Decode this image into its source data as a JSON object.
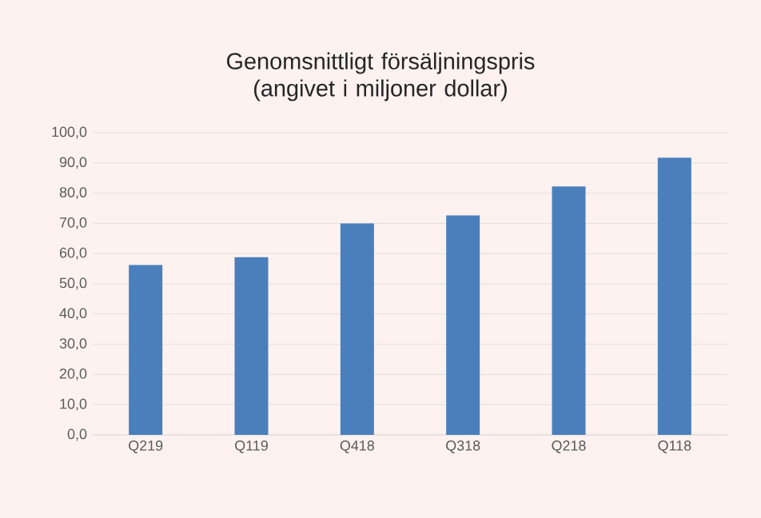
{
  "chart_data": {
    "type": "bar",
    "title": "Genomsnittligt försäljningspris (angivet i miljoner dollar)",
    "categories": [
      "Q219",
      "Q119",
      "Q418",
      "Q318",
      "Q218",
      "Q118"
    ],
    "values": [
      56.2,
      58.8,
      70.0,
      72.6,
      82.2,
      91.7
    ],
    "color": "#4a7fbc",
    "ylim": [
      0,
      100
    ],
    "yticks": [
      {
        "value": 0,
        "label": "0,0"
      },
      {
        "value": 10,
        "label": "10,0"
      },
      {
        "value": 20,
        "label": "20,0"
      },
      {
        "value": 30,
        "label": "30,0"
      },
      {
        "value": 40,
        "label": "40,0"
      },
      {
        "value": 50,
        "label": "50,0"
      },
      {
        "value": 60,
        "label": "60,0"
      },
      {
        "value": 70,
        "label": "70,0"
      },
      {
        "value": 80,
        "label": "80,0"
      },
      {
        "value": 90,
        "label": "90,0"
      },
      {
        "value": 100,
        "label": "100,0"
      }
    ],
    "grid": "y"
  }
}
